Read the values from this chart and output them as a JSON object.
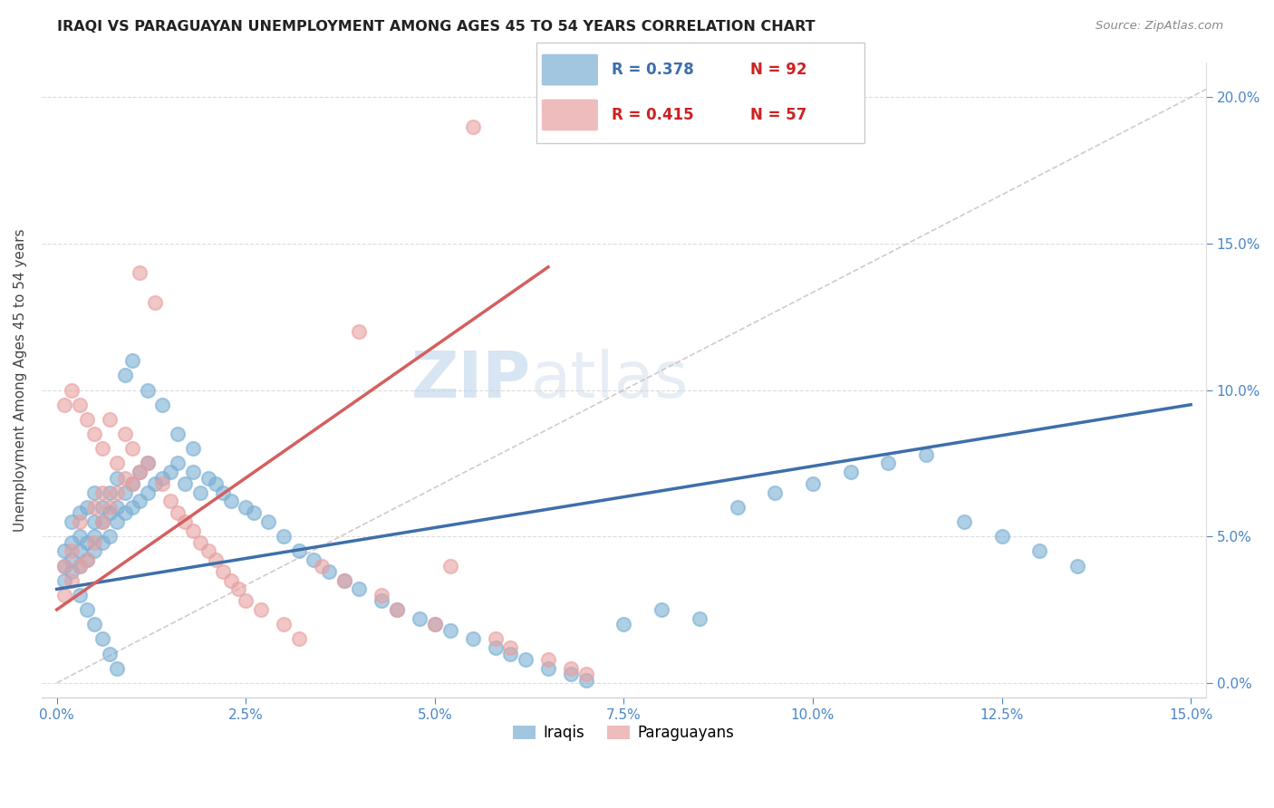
{
  "title": "IRAQI VS PARAGUAYAN UNEMPLOYMENT AMONG AGES 45 TO 54 YEARS CORRELATION CHART",
  "source_text": "Source: ZipAtlas.com",
  "ylabel": "Unemployment Among Ages 45 to 54 years",
  "watermark_zip": "ZIP",
  "watermark_atlas": "atlas",
  "xlim": [
    0.0,
    0.15
  ],
  "ylim": [
    0.0,
    0.21
  ],
  "blue_color": "#7bafd4",
  "pink_color": "#e8a0a0",
  "blue_line_color": "#3d6faa",
  "pink_line_color": "#d45f5f",
  "diag_color": "#ccbbbb",
  "legend_r_blue_color": "#3d6faa",
  "legend_n_blue_color": "#cc2222",
  "legend_r_pink_color": "#cc2222",
  "legend_n_pink_color": "#cc2222",
  "blue_scatter_x": [
    0.001,
    0.001,
    0.001,
    0.002,
    0.002,
    0.002,
    0.002,
    0.003,
    0.003,
    0.003,
    0.003,
    0.004,
    0.004,
    0.004,
    0.005,
    0.005,
    0.005,
    0.005,
    0.006,
    0.006,
    0.006,
    0.007,
    0.007,
    0.007,
    0.008,
    0.008,
    0.008,
    0.009,
    0.009,
    0.01,
    0.01,
    0.011,
    0.011,
    0.012,
    0.012,
    0.013,
    0.014,
    0.015,
    0.016,
    0.017,
    0.018,
    0.019,
    0.02,
    0.021,
    0.022,
    0.023,
    0.025,
    0.026,
    0.028,
    0.03,
    0.032,
    0.034,
    0.036,
    0.038,
    0.04,
    0.043,
    0.045,
    0.048,
    0.05,
    0.052,
    0.055,
    0.058,
    0.06,
    0.062,
    0.065,
    0.068,
    0.07,
    0.075,
    0.08,
    0.085,
    0.09,
    0.095,
    0.1,
    0.105,
    0.11,
    0.115,
    0.12,
    0.125,
    0.13,
    0.135,
    0.003,
    0.004,
    0.005,
    0.006,
    0.007,
    0.008,
    0.009,
    0.01,
    0.012,
    0.014,
    0.016,
    0.018
  ],
  "blue_scatter_y": [
    0.04,
    0.035,
    0.045,
    0.038,
    0.042,
    0.048,
    0.055,
    0.04,
    0.045,
    0.05,
    0.058,
    0.042,
    0.048,
    0.06,
    0.045,
    0.05,
    0.055,
    0.065,
    0.048,
    0.055,
    0.06,
    0.05,
    0.058,
    0.065,
    0.055,
    0.06,
    0.07,
    0.058,
    0.065,
    0.06,
    0.068,
    0.062,
    0.072,
    0.065,
    0.075,
    0.068,
    0.07,
    0.072,
    0.075,
    0.068,
    0.072,
    0.065,
    0.07,
    0.068,
    0.065,
    0.062,
    0.06,
    0.058,
    0.055,
    0.05,
    0.045,
    0.042,
    0.038,
    0.035,
    0.032,
    0.028,
    0.025,
    0.022,
    0.02,
    0.018,
    0.015,
    0.012,
    0.01,
    0.008,
    0.005,
    0.003,
    0.001,
    0.02,
    0.025,
    0.022,
    0.06,
    0.065,
    0.068,
    0.072,
    0.075,
    0.078,
    0.055,
    0.05,
    0.045,
    0.04,
    0.03,
    0.025,
    0.02,
    0.015,
    0.01,
    0.005,
    0.105,
    0.11,
    0.1,
    0.095,
    0.085,
    0.08
  ],
  "pink_scatter_x": [
    0.001,
    0.001,
    0.001,
    0.002,
    0.002,
    0.002,
    0.003,
    0.003,
    0.003,
    0.004,
    0.004,
    0.005,
    0.005,
    0.005,
    0.006,
    0.006,
    0.006,
    0.007,
    0.007,
    0.008,
    0.008,
    0.009,
    0.009,
    0.01,
    0.01,
    0.011,
    0.011,
    0.012,
    0.013,
    0.014,
    0.015,
    0.016,
    0.017,
    0.018,
    0.019,
    0.02,
    0.021,
    0.022,
    0.023,
    0.024,
    0.025,
    0.027,
    0.03,
    0.032,
    0.035,
    0.038,
    0.04,
    0.043,
    0.045,
    0.05,
    0.052,
    0.055,
    0.058,
    0.06,
    0.065,
    0.068,
    0.07
  ],
  "pink_scatter_y": [
    0.03,
    0.095,
    0.04,
    0.035,
    0.1,
    0.045,
    0.04,
    0.095,
    0.055,
    0.042,
    0.09,
    0.06,
    0.048,
    0.085,
    0.055,
    0.065,
    0.08,
    0.06,
    0.09,
    0.065,
    0.075,
    0.07,
    0.085,
    0.068,
    0.08,
    0.072,
    0.14,
    0.075,
    0.13,
    0.068,
    0.062,
    0.058,
    0.055,
    0.052,
    0.048,
    0.045,
    0.042,
    0.038,
    0.035,
    0.032,
    0.028,
    0.025,
    0.02,
    0.015,
    0.04,
    0.035,
    0.12,
    0.03,
    0.025,
    0.02,
    0.04,
    0.19,
    0.015,
    0.012,
    0.008,
    0.005,
    0.003
  ],
  "blue_trend": [
    0.035,
    0.09
  ],
  "pink_trend_x": [
    0.0,
    0.065
  ],
  "pink_trend_y": [
    0.025,
    0.12
  ]
}
